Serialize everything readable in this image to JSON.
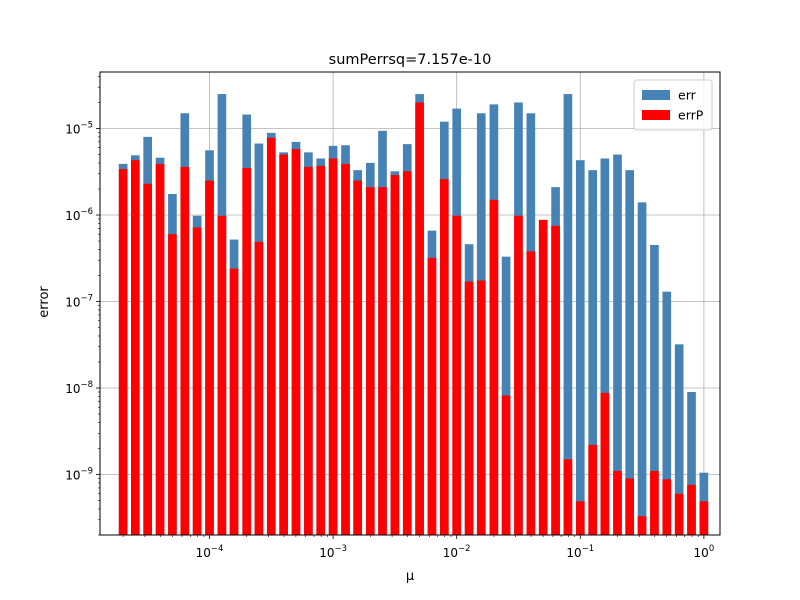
{
  "chart_data": {
    "type": "bar",
    "title": "sumPerrsq=7.157e-10",
    "xlabel": "μ",
    "ylabel": "error",
    "xscale": "log",
    "yscale": "log",
    "xlim": [
      1.3e-05,
      1.35
    ],
    "ylim": [
      2e-10,
      4.5e-05
    ],
    "grid": true,
    "legend_position": "top-right",
    "x_ticks": [
      {
        "value": 0.0001,
        "base": "10",
        "exp": "−4"
      },
      {
        "value": 0.001,
        "base": "10",
        "exp": "−3"
      },
      {
        "value": 0.01,
        "base": "10",
        "exp": "−2"
      },
      {
        "value": 0.1,
        "base": "10",
        "exp": "−1"
      },
      {
        "value": 1,
        "base": "10",
        "exp": "0"
      }
    ],
    "y_ticks": [
      {
        "value": 1e-09,
        "base": "10",
        "exp": "−9"
      },
      {
        "value": 1e-08,
        "base": "10",
        "exp": "−8"
      },
      {
        "value": 1e-07,
        "base": "10",
        "exp": "−7"
      },
      {
        "value": 1e-06,
        "base": "10",
        "exp": "−6"
      },
      {
        "value": 1e-05,
        "base": "10",
        "exp": "−5"
      }
    ],
    "x": [
      2e-05,
      2.51e-05,
      3.16e-05,
      3.98e-05,
      5.01e-05,
      6.31e-05,
      7.94e-05,
      0.0001,
      0.000126,
      0.000158,
      0.0002,
      0.000251,
      0.000316,
      0.000398,
      0.000501,
      0.000631,
      0.000794,
      0.001,
      0.00126,
      0.00158,
      0.002,
      0.00251,
      0.00316,
      0.00398,
      0.00501,
      0.00631,
      0.00794,
      0.01,
      0.0126,
      0.0158,
      0.02,
      0.0251,
      0.0316,
      0.0398,
      0.0501,
      0.0631,
      0.0794,
      0.1,
      0.126,
      0.158,
      0.2,
      0.251,
      0.316,
      0.398,
      0.501,
      0.631,
      0.794,
      1.0
    ],
    "series": [
      {
        "name": "err",
        "color": "#4682b4",
        "values": [
          3.9e-06,
          4.9e-06,
          8e-06,
          4.6e-06,
          1.75e-06,
          1.5e-05,
          9.8e-07,
          5.6e-06,
          2.5e-05,
          5.2e-07,
          1.45e-05,
          6.7e-06,
          8.9e-06,
          5.3e-06,
          7e-06,
          5.3e-06,
          4.5e-06,
          6.3e-06,
          6.4e-06,
          3.3e-06,
          4e-06,
          9.4e-06,
          3.2e-06,
          6.6e-06,
          2.5e-05,
          6.6e-07,
          1.2e-05,
          1.7e-05,
          4.6e-07,
          1.5e-05,
          1.9e-05,
          3.3e-07,
          2e-05,
          1.5e-05,
          7e-07,
          2.1e-06,
          2.5e-05,
          4.3e-06,
          3.3e-06,
          4.5e-06,
          5e-06,
          3.3e-06,
          1.4e-06,
          4.5e-07,
          1.3e-07,
          3.2e-08,
          9e-09,
          1.05e-09
        ]
      },
      {
        "name": "errP",
        "color": "#ff0000",
        "values": [
          3.4e-06,
          4.3e-06,
          2.3e-06,
          3.9e-06,
          6e-07,
          3.6e-06,
          7.2e-07,
          2.5e-06,
          9.8e-07,
          2.4e-07,
          3.5e-06,
          4.9e-07,
          7.8e-06,
          5e-06,
          5.8e-06,
          3.6e-06,
          3.7e-06,
          4.5e-06,
          3.9e-06,
          2.5e-06,
          2.1e-06,
          2.1e-06,
          2.9e-06,
          3.2e-06,
          2e-05,
          3.2e-07,
          2.6e-06,
          9.8e-07,
          1.7e-07,
          1.75e-07,
          1.5e-06,
          8.2e-09,
          9.8e-07,
          3.8e-07,
          8.8e-07,
          7.5e-07,
          1.5e-09,
          4.9e-10,
          2.2e-09,
          8.8e-09,
          1.1e-09,
          9e-10,
          3.3e-10,
          1.1e-09,
          8.8e-10,
          6e-10,
          7.6e-10,
          4.9e-10
        ]
      }
    ]
  }
}
